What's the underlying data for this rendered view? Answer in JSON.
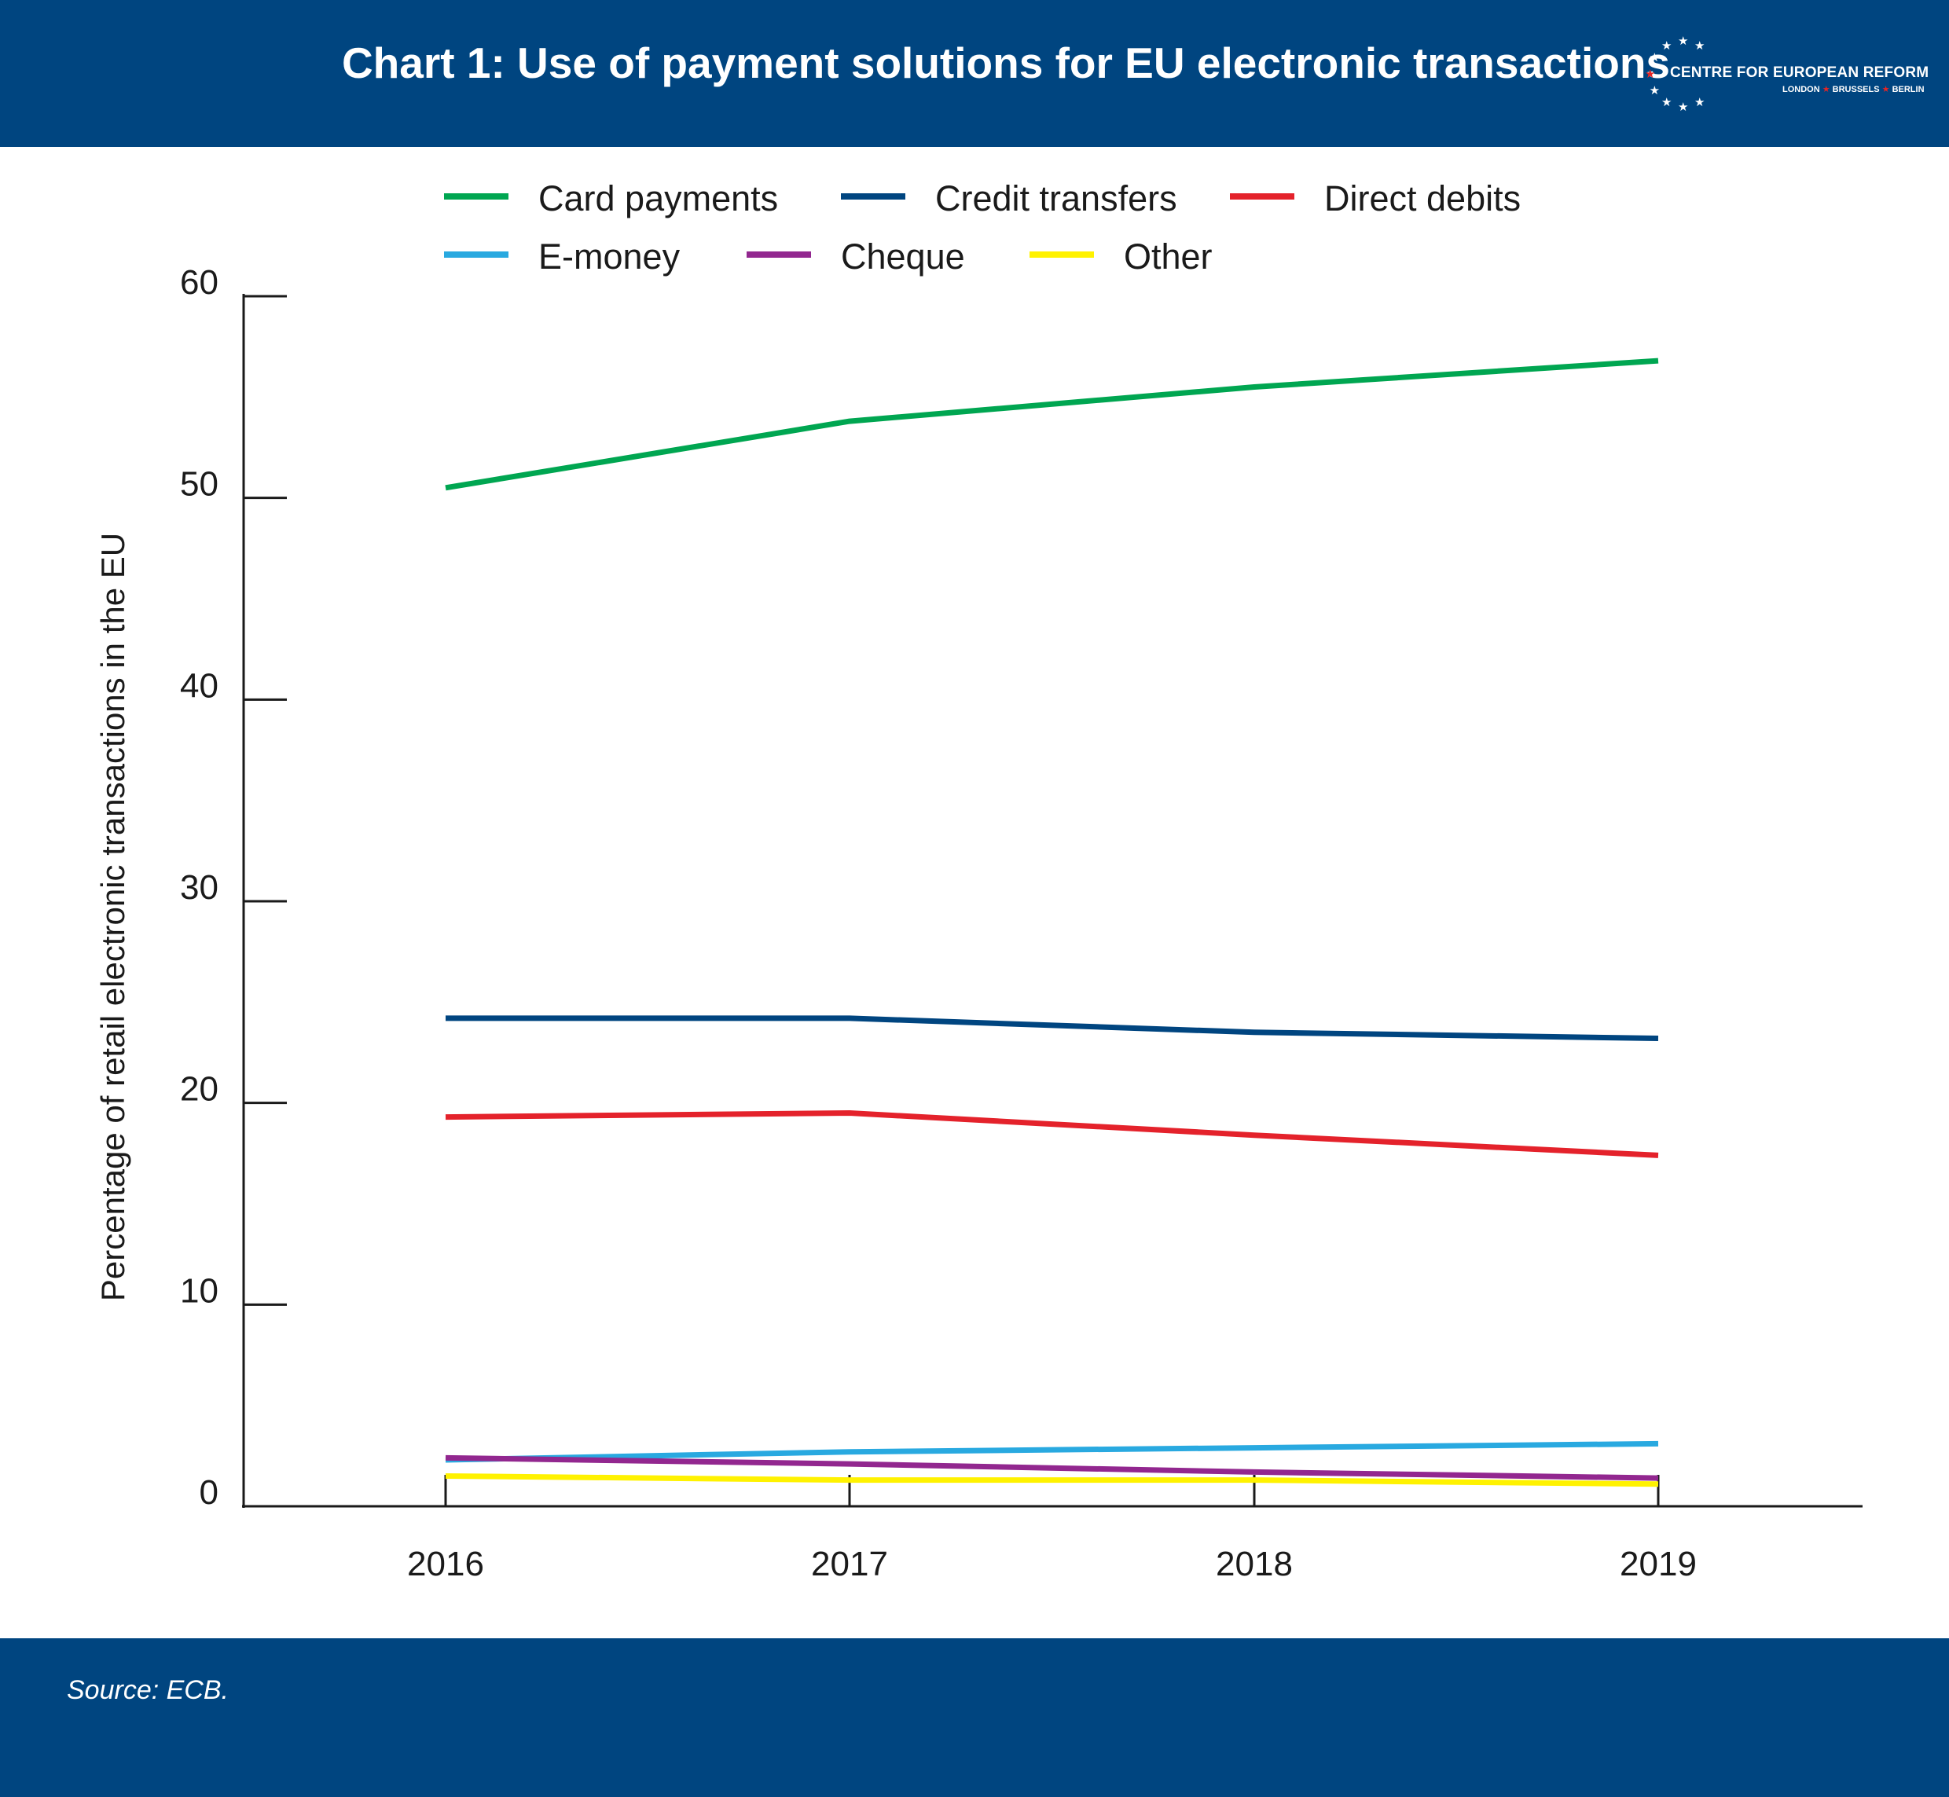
{
  "header": {
    "title": "Chart 1: Use of payment solutions for EU electronic transactions",
    "logo_name": "CENTRE FOR EUROPEAN REFORM",
    "logo_city_1": "LONDON",
    "logo_city_2": "BRUSSELS",
    "logo_city_3": "BERLIN",
    "logo_separator": "★"
  },
  "footer": {
    "source": "Source: ECB."
  },
  "colors": {
    "band": "#004580"
  },
  "chart_data": {
    "type": "line",
    "title": "Chart 1: Use of payment solutions for EU electronic transactions",
    "xlabel": "",
    "ylabel": "Percentage of retail electronic transactions in the EU",
    "x": [
      "2016",
      "2017",
      "2018",
      "2019"
    ],
    "ylim": [
      0,
      60
    ],
    "yticks": [
      0,
      10,
      20,
      30,
      40,
      50,
      60
    ],
    "grid": false,
    "legend_position": "top",
    "series": [
      {
        "name": "Card payments",
        "color": "#00a651",
        "values": [
          50.5,
          53.8,
          55.5,
          56.8
        ]
      },
      {
        "name": "Credit transfers",
        "color": "#004580",
        "values": [
          24.2,
          24.2,
          23.5,
          23.2
        ]
      },
      {
        "name": "Direct debits",
        "color": "#e4222b",
        "values": [
          19.3,
          19.5,
          18.4,
          17.4
        ]
      },
      {
        "name": "E-money",
        "color": "#29a9e0",
        "values": [
          2.3,
          2.7,
          2.9,
          3.1
        ]
      },
      {
        "name": "Cheque",
        "color": "#92278f",
        "values": [
          2.4,
          2.1,
          1.7,
          1.4
        ]
      },
      {
        "name": "Other",
        "color": "#fff200",
        "values": [
          1.5,
          1.3,
          1.3,
          1.1
        ]
      }
    ]
  }
}
